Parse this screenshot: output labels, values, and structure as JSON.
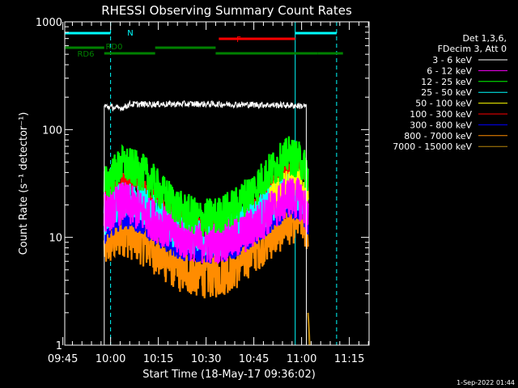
{
  "chart_data": {
    "type": "line",
    "title": "RHESSI Observing Summary Count Rates",
    "xlabel": "Start Time (18-May-17 09:36:02)",
    "ylabel": "Count Rate (s⁻¹ detector⁻¹)",
    "y_scale": "log",
    "ylim": [
      1,
      1000
    ],
    "xlim_minutes": [
      9.6,
      105.2
    ],
    "x_ticks": [
      "09:45",
      "10:00",
      "10:15",
      "10:30",
      "10:45",
      "11:00",
      "11:15"
    ],
    "x_tick_minutes": [
      9,
      24,
      39,
      54,
      69,
      84,
      99
    ],
    "y_ticks": [
      "1",
      "10",
      "100",
      "1000"
    ],
    "y_tick_values": [
      1,
      10,
      100,
      1000
    ],
    "legend": {
      "placement": "right",
      "header": [
        "Det 1,3,6,",
        "FDecim 3, Att 0"
      ]
    },
    "series": [
      {
        "name": "3 - 6 keV",
        "color": "#ffffff",
        "x": [
          22,
          24,
          26,
          28,
          30,
          40,
          50,
          60,
          70,
          80,
          85.5
        ],
        "values": [
          165,
          162,
          158,
          160,
          172,
          172,
          173,
          172,
          170,
          168,
          165
        ]
      },
      {
        "name": "6 - 12 keV",
        "color": "#ff00ff",
        "x": [
          22,
          28,
          34,
          40,
          46,
          52,
          58,
          64,
          70,
          76,
          80,
          84,
          86
        ],
        "values": [
          17,
          21,
          17,
          13,
          10,
          9,
          9,
          10,
          13,
          19,
          24,
          22,
          15
        ]
      },
      {
        "name": "12 - 25 keV",
        "color": "#00ff00",
        "x": [
          22,
          28,
          34,
          40,
          46,
          52,
          58,
          64,
          70,
          76,
          80,
          84,
          86
        ],
        "values": [
          30,
          48,
          40,
          26,
          18,
          15,
          16,
          20,
          30,
          46,
          58,
          50,
          38
        ]
      },
      {
        "name": "25 - 50 keV",
        "color": "#00ffff",
        "x": [
          22,
          28,
          34,
          40,
          46,
          52,
          58,
          64,
          70,
          76,
          80,
          84,
          86
        ],
        "values": [
          15,
          24,
          20,
          14,
          11,
          10,
          10,
          12,
          16,
          22,
          27,
          24,
          18
        ]
      },
      {
        "name": "50 - 100 keV",
        "color": "#ffff00",
        "x": [
          74,
          78,
          81,
          84,
          86
        ],
        "values": [
          22,
          28,
          33,
          30,
          22
        ]
      },
      {
        "name": "100 - 300 keV",
        "color": "#ff0000",
        "x": [
          22,
          28,
          34,
          40,
          46,
          52,
          58,
          64,
          70,
          76,
          80,
          84,
          86
        ],
        "values": [
          22,
          33,
          29,
          20,
          15,
          13,
          13,
          15,
          22,
          33,
          42,
          45,
          30
        ]
      },
      {
        "name": "300 - 800 keV",
        "color": "#0000ff",
        "x": [
          22,
          28,
          34,
          40,
          46,
          52,
          58,
          64,
          70,
          76,
          80,
          84,
          86
        ],
        "values": [
          11,
          16,
          14,
          10,
          8,
          7.5,
          7.5,
          8.5,
          11,
          16,
          20,
          19,
          13
        ]
      },
      {
        "name": "800 - 7000 keV",
        "color": "#ff8c00",
        "x": [
          22,
          28,
          34,
          40,
          46,
          52,
          58,
          64,
          70,
          76,
          80,
          84,
          86
        ],
        "values": [
          8,
          11,
          9,
          6.5,
          5,
          4.5,
          4.5,
          5.5,
          8,
          11,
          14,
          15,
          11
        ]
      },
      {
        "name": "7000 - 15000 keV",
        "color": "#b8860b",
        "x": [
          86,
          86.5
        ],
        "values": [
          2,
          1
        ]
      }
    ],
    "attenuator_bars": [
      {
        "label": "N",
        "color": "#00ffff",
        "segments": [
          [
            9.6,
            24
          ],
          [
            82,
            95
          ]
        ]
      },
      {
        "label": "F",
        "color": "#ff0000",
        "segments": [
          [
            58,
            82
          ]
        ]
      },
      {
        "label": "RD0",
        "color": "#008000",
        "segments": [
          [
            9.6,
            22
          ],
          [
            38,
            57
          ]
        ]
      },
      {
        "label": "RD6",
        "color": "#008000",
        "segments": [
          [
            22,
            38
          ],
          [
            57,
            89
          ],
          [
            89,
            97
          ]
        ]
      }
    ],
    "vertical_markers": [
      {
        "minute": 24,
        "color": "#00ffff",
        "style": "dashed"
      },
      {
        "minute": 82,
        "color": "#00ffff",
        "style": "solid"
      },
      {
        "minute": 95,
        "color": "#00ffff",
        "style": "dashed"
      }
    ]
  },
  "footer": {
    "date_stamp": "1-Sep-2022 01:44"
  }
}
